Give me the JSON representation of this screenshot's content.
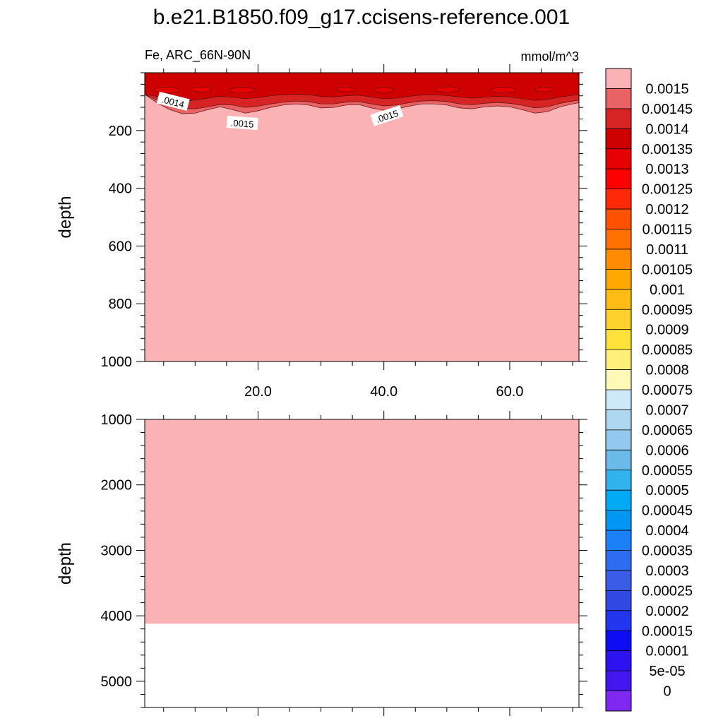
{
  "chart_data": {
    "type": "heatmap",
    "title": "b.e21.B1850.f09_g17.ccisens-reference.001",
    "left_subtitle": "Fe, ARC_66N-90N",
    "right_subtitle": "mmol/m^3",
    "shared_x": {
      "range": [
        2,
        71
      ],
      "major_ticks": [
        20,
        40,
        60
      ],
      "tick_labels": [
        "20.0",
        "40.0",
        "60.0"
      ],
      "minor_step": 5
    },
    "panels": [
      {
        "name": "upper",
        "ylabel": "depth",
        "ylim": [
          0,
          1000
        ],
        "y_inverted": true,
        "y_ticks": [
          200,
          400,
          600,
          800,
          1000
        ],
        "y_tick_labels": [
          "200",
          "400",
          "600",
          "800",
          "1000"
        ],
        "show_x_tick_labels": true,
        "background_level": "> 0.0015",
        "bottom_depth": null,
        "contour_bands": [
          {
            "level": "0.0015",
            "outline": [
              [
                2,
                75
              ],
              [
                4,
                105
              ],
              [
                6,
                128
              ],
              [
                8,
                142
              ],
              [
                10,
                140
              ],
              [
                12,
                128
              ],
              [
                14,
                118
              ],
              [
                16,
                128
              ],
              [
                18,
                140
              ],
              [
                20,
                132
              ],
              [
                22,
                120
              ],
              [
                24,
                112
              ],
              [
                26,
                108
              ],
              [
                28,
                112
              ],
              [
                30,
                122
              ],
              [
                32,
                120
              ],
              [
                34,
                112
              ],
              [
                36,
                110
              ],
              [
                38,
                122
              ],
              [
                40,
                130
              ],
              [
                42,
                126
              ],
              [
                44,
                116
              ],
              [
                46,
                108
              ],
              [
                48,
                108
              ],
              [
                50,
                112
              ],
              [
                52,
                122
              ],
              [
                54,
                125
              ],
              [
                56,
                118
              ],
              [
                58,
                115
              ],
              [
                60,
                118
              ],
              [
                62,
                128
              ],
              [
                64,
                140
              ],
              [
                66,
                135
              ],
              [
                68,
                118
              ],
              [
                70,
                108
              ],
              [
                71,
                104
              ]
            ]
          },
          {
            "level": "0.00145",
            "outline": [
              [
                2,
                75
              ],
              [
                4,
                95
              ],
              [
                6,
                112
              ],
              [
                8,
                124
              ],
              [
                10,
                125
              ],
              [
                12,
                118
              ],
              [
                14,
                110
              ],
              [
                16,
                112
              ],
              [
                18,
                120
              ],
              [
                20,
                116
              ],
              [
                22,
                108
              ],
              [
                24,
                102
              ],
              [
                26,
                98
              ],
              [
                28,
                100
              ],
              [
                30,
                108
              ],
              [
                32,
                108
              ],
              [
                34,
                102
              ],
              [
                36,
                100
              ],
              [
                38,
                108
              ],
              [
                40,
                115
              ],
              [
                42,
                112
              ],
              [
                44,
                104
              ],
              [
                46,
                98
              ],
              [
                48,
                97
              ],
              [
                50,
                100
              ],
              [
                52,
                108
              ],
              [
                54,
                111
              ],
              [
                56,
                106
              ],
              [
                58,
                103
              ],
              [
                60,
                106
              ],
              [
                62,
                113
              ],
              [
                64,
                122
              ],
              [
                66,
                118
              ],
              [
                68,
                106
              ],
              [
                70,
                98
              ],
              [
                71,
                95
              ]
            ]
          },
          {
            "level": "0.0014",
            "outline": [
              [
                2,
                75
              ],
              [
                4,
                82
              ],
              [
                6,
                90
              ],
              [
                8,
                98
              ],
              [
                10,
                95
              ],
              [
                12,
                88
              ],
              [
                14,
                82
              ],
              [
                16,
                85
              ],
              [
                18,
                90
              ],
              [
                20,
                86
              ],
              [
                22,
                80
              ],
              [
                24,
                76
              ],
              [
                26,
                75
              ],
              [
                28,
                76
              ],
              [
                30,
                82
              ],
              [
                32,
                84
              ],
              [
                34,
                80
              ],
              [
                36,
                78
              ],
              [
                38,
                84
              ],
              [
                40,
                90
              ],
              [
                42,
                88
              ],
              [
                44,
                82
              ],
              [
                46,
                77
              ],
              [
                48,
                76
              ],
              [
                50,
                79
              ],
              [
                52,
                84
              ],
              [
                54,
                88
              ],
              [
                56,
                85
              ],
              [
                58,
                82
              ],
              [
                60,
                84
              ],
              [
                62,
                90
              ],
              [
                64,
                96
              ],
              [
                66,
                92
              ],
              [
                68,
                84
              ],
              [
                70,
                78
              ],
              [
                71,
                76
              ]
            ]
          }
        ],
        "cores_0.00135": [
          {
            "x": 5.5,
            "depth": 60,
            "rx": 2.0,
            "ry": 10
          },
          {
            "x": 11,
            "depth": 58,
            "rx": 1.6,
            "ry": 9
          },
          {
            "x": 17.5,
            "depth": 60,
            "rx": 2.0,
            "ry": 10
          },
          {
            "x": 34,
            "depth": 58,
            "rx": 1.5,
            "ry": 8
          },
          {
            "x": 40,
            "depth": 60,
            "rx": 1.6,
            "ry": 9
          },
          {
            "x": 50,
            "depth": 58,
            "rx": 2.0,
            "ry": 9
          },
          {
            "x": 59,
            "depth": 60,
            "rx": 2.0,
            "ry": 10
          },
          {
            "x": 65.5,
            "depth": 58,
            "rx": 1.6,
            "ry": 8
          }
        ],
        "contour_labels": [
          {
            "text": ".0014",
            "x": 6.5,
            "depth": 100,
            "angle": 14
          },
          {
            "text": ".0015",
            "x": 17.5,
            "depth": 175,
            "angle": 4
          },
          {
            "text": ".0015",
            "x": 40.5,
            "depth": 150,
            "angle": -18
          }
        ]
      },
      {
        "name": "lower",
        "ylabel": "depth",
        "ylim": [
          1000,
          5400
        ],
        "y_inverted": true,
        "y_ticks": [
          1000,
          2000,
          3000,
          4000,
          5000
        ],
        "y_tick_labels": [
          "1000",
          "2000",
          "3000",
          "4000",
          "5000"
        ],
        "show_x_tick_labels": false,
        "background_level": "> 0.0015",
        "bottom_depth": 4120,
        "contour_bands": [],
        "cores_0.00135": [],
        "contour_labels": []
      }
    ],
    "colorbar": {
      "label_levels": [
        "0.0015",
        "0.00145",
        "0.0014",
        "0.00135",
        "0.0013",
        "0.00125",
        "0.0012",
        "0.00115",
        "0.0011",
        "0.00105",
        "0.001",
        "0.00095",
        "0.0009",
        "0.00085",
        "0.0008",
        "0.00075",
        "0.0007",
        "0.00065",
        "0.0006",
        "0.00055",
        "0.0005",
        "0.00045",
        "0.0004",
        "0.00035",
        "0.0003",
        "0.00025",
        "0.0002",
        "0.00015",
        "0.0001",
        "5e-05",
        "0"
      ],
      "colors_top_to_bottom": [
        "#fbb2b4",
        "#e86363",
        "#d62424",
        "#cf0000",
        "#e60000",
        "#ff0000",
        "#ff2a05",
        "#ff5200",
        "#ff7100",
        "#ff8c00",
        "#ffa800",
        "#ffbd14",
        "#ffd12b",
        "#ffe23a",
        "#fff07a",
        "#fff9b8",
        "#cde8f6",
        "#aed8f2",
        "#93c8ef",
        "#6bbbea",
        "#31b3ee",
        "#00aaf5",
        "#0096f3",
        "#1b80f5",
        "#2d6df0",
        "#3a5de8",
        "#3148e2",
        "#2235ef",
        "#0d0df5",
        "#2e13f1",
        "#4318f0",
        "#7f28f0"
      ]
    }
  }
}
